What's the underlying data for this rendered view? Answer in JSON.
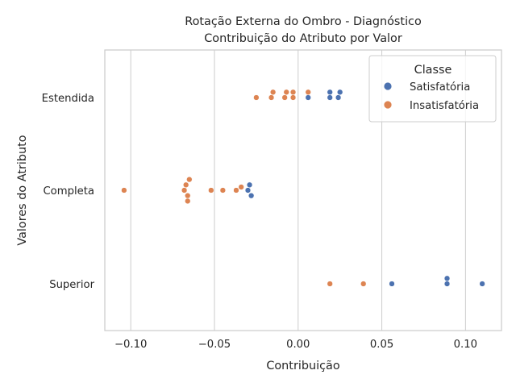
{
  "chart_data": {
    "type": "scatter",
    "title": "Rotação Externa do Ombro - Diagnóstico",
    "subtitle": "Contribuição do Atributo por Valor",
    "xlabel": "Contribuição",
    "ylabel": "Valores do Atributo",
    "xlim": [
      -0.1155,
      0.1215
    ],
    "xticks": [
      "−0.10",
      "−0.05",
      "0.00",
      "0.05",
      "0.10"
    ],
    "xtick_values": [
      -0.1,
      -0.05,
      0.0,
      0.05,
      0.1
    ],
    "categories": [
      "Estendida",
      "Completa",
      "Superior"
    ],
    "grid": "vertical",
    "legend": {
      "title": "Classe",
      "placement": "top-right"
    },
    "series": [
      {
        "name": "Satisfatória",
        "color": "#4c72b0",
        "points": [
          {
            "x": 0.025,
            "y": "Estendida",
            "offset": -1
          },
          {
            "x": 0.019,
            "y": "Estendida",
            "offset": -1
          },
          {
            "x": 0.006,
            "y": "Estendida",
            "offset": 0
          },
          {
            "x": 0.019,
            "y": "Estendida",
            "offset": 0
          },
          {
            "x": 0.024,
            "y": "Estendida",
            "offset": 0
          },
          {
            "x": -0.029,
            "y": "Completa",
            "offset": -1
          },
          {
            "x": -0.03,
            "y": "Completa",
            "offset": 0
          },
          {
            "x": -0.028,
            "y": "Completa",
            "offset": 1
          },
          {
            "x": 0.089,
            "y": "Superior",
            "offset": -1
          },
          {
            "x": 0.089,
            "y": "Superior",
            "offset": 0
          },
          {
            "x": 0.056,
            "y": "Superior",
            "offset": 0
          },
          {
            "x": 0.11,
            "y": "Superior",
            "offset": 0
          }
        ]
      },
      {
        "name": "Insatisfatória",
        "color": "#dd8452",
        "points": [
          {
            "x": -0.015,
            "y": "Estendida",
            "offset": -1
          },
          {
            "x": -0.007,
            "y": "Estendida",
            "offset": -1
          },
          {
            "x": -0.003,
            "y": "Estendida",
            "offset": -1
          },
          {
            "x": 0.006,
            "y": "Estendida",
            "offset": -1
          },
          {
            "x": -0.025,
            "y": "Estendida",
            "offset": 0
          },
          {
            "x": -0.016,
            "y": "Estendida",
            "offset": 0
          },
          {
            "x": -0.008,
            "y": "Estendida",
            "offset": 0
          },
          {
            "x": -0.003,
            "y": "Estendida",
            "offset": 0
          },
          {
            "x": -0.065,
            "y": "Completa",
            "offset": -2
          },
          {
            "x": -0.067,
            "y": "Completa",
            "offset": -1
          },
          {
            "x": -0.034,
            "y": "Completa",
            "offset": -0.6
          },
          {
            "x": -0.104,
            "y": "Completa",
            "offset": 0
          },
          {
            "x": -0.068,
            "y": "Completa",
            "offset": 0
          },
          {
            "x": -0.052,
            "y": "Completa",
            "offset": 0
          },
          {
            "x": -0.045,
            "y": "Completa",
            "offset": 0
          },
          {
            "x": -0.037,
            "y": "Completa",
            "offset": 0
          },
          {
            "x": -0.066,
            "y": "Completa",
            "offset": 1
          },
          {
            "x": -0.066,
            "y": "Completa",
            "offset": 2
          },
          {
            "x": 0.019,
            "y": "Superior",
            "offset": 0
          },
          {
            "x": 0.039,
            "y": "Superior",
            "offset": 0
          }
        ]
      }
    ]
  }
}
